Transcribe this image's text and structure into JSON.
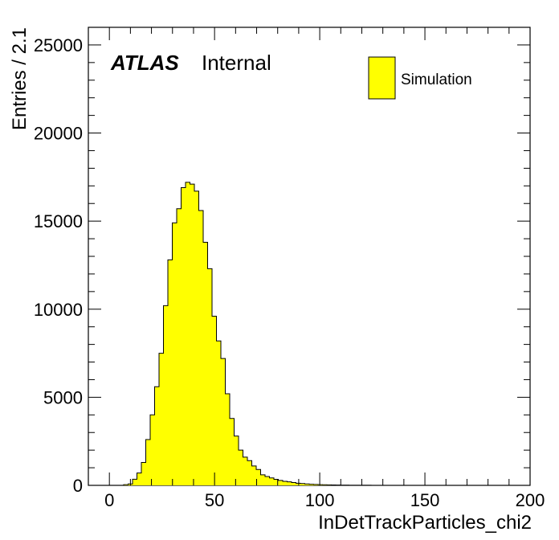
{
  "chart_data": {
    "type": "bar",
    "subtype": "histogram",
    "xlabel": "InDetTrackParticles_chi2",
    "ylabel": "Entries / 2.1",
    "xlim": [
      -10,
      200
    ],
    "ylim": [
      0,
      26000
    ],
    "x_ticks": [
      0,
      50,
      100,
      150,
      200
    ],
    "y_ticks": [
      0,
      5000,
      10000,
      15000,
      20000,
      25000
    ],
    "x_tick_labels": [
      "0",
      "50",
      "100",
      "150",
      "200"
    ],
    "y_tick_labels": [
      "0",
      "5000",
      "10000",
      "15000",
      "20000",
      "25000"
    ],
    "atlas_label": "ATLAS",
    "atlas_sublabel": "Internal",
    "legend": {
      "position": "top-right",
      "entries": [
        {
          "label": "Simulation",
          "color": "#ffff00"
        }
      ]
    },
    "fill_color": "#ffff00",
    "line_color": "#000000",
    "grid": false,
    "bin_width": 2.1,
    "bin_start": -10,
    "series": [
      {
        "values": [
          0,
          0,
          0,
          0,
          0,
          0,
          0,
          0,
          40,
          80,
          350,
          700,
          1300,
          2600,
          4000,
          5600,
          7500,
          10200,
          12800,
          14900,
          15700,
          16900,
          17200,
          17100,
          16700,
          15600,
          13800,
          12300,
          9600,
          8200,
          7200,
          5200,
          3800,
          2800,
          2000,
          1600,
          1400,
          1100,
          900,
          600,
          500,
          420,
          340,
          280,
          230,
          200,
          160,
          120,
          100,
          80,
          65,
          50,
          40,
          32,
          26,
          20,
          16,
          12,
          10,
          8,
          6,
          5,
          4,
          3,
          2,
          2,
          1,
          1,
          1,
          0,
          0,
          0,
          0,
          0,
          0,
          0,
          0,
          0,
          0,
          0,
          0,
          0,
          0,
          0,
          0,
          0,
          0,
          0,
          0,
          0,
          0,
          0,
          0,
          0,
          0,
          0,
          0,
          0,
          0,
          0
        ]
      }
    ]
  }
}
